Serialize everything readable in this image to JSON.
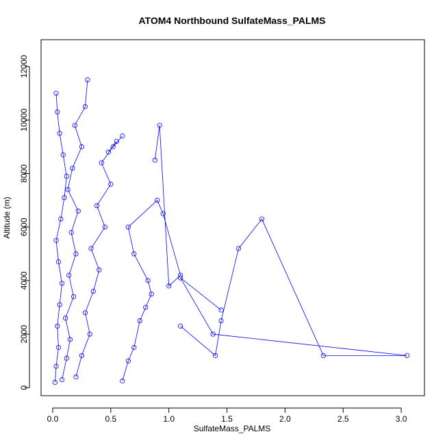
{
  "chart_data": {
    "type": "scatter",
    "title": "ATOM4 Northbound SulfateMass_PALMS",
    "xlabel": "SulfateMass_PALMS",
    "ylabel": "Altitude (m)",
    "xlim": [
      -0.1,
      3.2
    ],
    "ylim": [
      -300,
      13000
    ],
    "xticks": [
      0.0,
      0.5,
      1.0,
      1.5,
      2.0,
      2.5,
      3.0
    ],
    "xtick_labels": [
      "0.0",
      "0.5",
      "1.0",
      "1.5",
      "2.0",
      "2.5",
      "3.0"
    ],
    "yticks": [
      0,
      2000,
      4000,
      6000,
      8000,
      10000,
      12000
    ],
    "ytick_labels": [
      "0",
      "2000",
      "4000",
      "6000",
      "8000",
      "10000",
      "12000"
    ],
    "grid": false,
    "legend": "none",
    "marker": "open-circle",
    "color": "#0000ff",
    "series": [
      {
        "x": [
          0.02,
          0.03,
          0.05,
          0.04,
          0.06,
          0.08,
          0.05,
          0.03,
          0.07,
          0.1,
          0.12,
          0.09,
          0.06,
          0.04,
          0.03
        ],
        "y": [
          200,
          800,
          1500,
          2300,
          3100,
          3900,
          4700,
          5500,
          6300,
          7100,
          7900,
          8700,
          9500,
          10300,
          11000
        ]
      },
      {
        "x": [
          0.08,
          0.12,
          0.15,
          0.11,
          0.18,
          0.14,
          0.2,
          0.16,
          0.22,
          0.13,
          0.17,
          0.25,
          0.19,
          0.28,
          0.3
        ],
        "y": [
          300,
          1100,
          1800,
          2600,
          3400,
          4200,
          5000,
          5800,
          6600,
          7400,
          8200,
          9000,
          9800,
          10500,
          11500
        ]
      },
      {
        "x": [
          0.2,
          0.25,
          0.32,
          0.28,
          0.35,
          0.4,
          0.33,
          0.45,
          0.38,
          0.5,
          0.42,
          0.55,
          0.48,
          0.6,
          0.52
        ],
        "y": [
          400,
          1200,
          2000,
          2800,
          3600,
          4400,
          5200,
          6000,
          6800,
          7600,
          8400,
          9200,
          8800,
          9400,
          9000
        ]
      },
      {
        "x": [
          0.6,
          0.65,
          0.7,
          0.75,
          0.8,
          0.85,
          0.82,
          0.7,
          0.65,
          0.9,
          0.95,
          1.1,
          1.0,
          0.92,
          0.88
        ],
        "y": [
          250,
          1000,
          1500,
          2500,
          3000,
          3500,
          4000,
          5000,
          6000,
          7000,
          6500,
          4200,
          3800,
          9800,
          8500
        ]
      },
      {
        "x": [
          1.1,
          1.4,
          1.45,
          1.6,
          1.8,
          2.33,
          3.05,
          1.38,
          1.1,
          1.45
        ],
        "y": [
          2300,
          1200,
          2500,
          5200,
          6300,
          1200,
          1200,
          2000,
          4100,
          2900
        ]
      }
    ]
  }
}
